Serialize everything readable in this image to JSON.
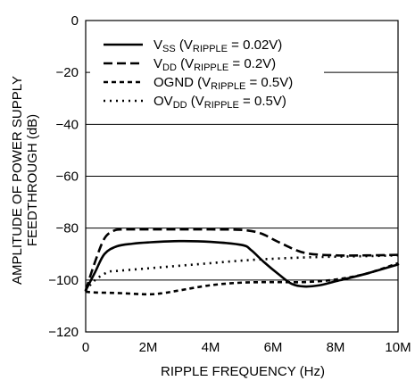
{
  "chart_data": {
    "type": "line",
    "title": "",
    "xlabel": "RIPPLE FREQUENCY (Hz)",
    "ylabel_lines": [
      "AMPLITUDE OF POWER SUPPLY",
      "FEEDTHROUGH (dB)"
    ],
    "xlim": [
      0,
      10000000
    ],
    "ylim": [
      -120,
      0
    ],
    "x_ticks": [
      0,
      2000000,
      4000000,
      6000000,
      8000000,
      10000000
    ],
    "x_tick_labels": [
      "0",
      "2M",
      "4M",
      "6M",
      "8M",
      "10M"
    ],
    "y_ticks": [
      0,
      -20,
      -40,
      -60,
      -80,
      -100,
      -120
    ],
    "y_tick_labels": [
      "0",
      "−20",
      "−40",
      "−60",
      "−80",
      "−100",
      "−120"
    ],
    "grid": "horizontal",
    "legend_position": "top-left",
    "series": [
      {
        "name": "VSS (VRIPPLE = 0.02V)",
        "legend": {
          "base": "V",
          "sub": "SS",
          "mid": " (V",
          "sub2": "RIPPLE",
          "tail": " = 0.02V)"
        },
        "style": "solid",
        "x": [
          0,
          300000,
          600000,
          1000000,
          1500000,
          2000000,
          3000000,
          4000000,
          5000000,
          5300000,
          5700000,
          6200000,
          6600000,
          7000000,
          7500000,
          8000000,
          9000000,
          10000000
        ],
        "y": [
          -104,
          -97,
          -90,
          -87,
          -86,
          -85.5,
          -85,
          -85.3,
          -86.5,
          -88.5,
          -93,
          -98,
          -101.5,
          -102.5,
          -102,
          -100.5,
          -97.5,
          -94
        ]
      },
      {
        "name": "VDD (VRIPPLE = 0.2V)",
        "legend": {
          "base": "V",
          "sub": "DD",
          "mid": " (V",
          "sub2": "RIPPLE",
          "tail": " = 0.2V)"
        },
        "style": "dashed",
        "x": [
          0,
          300000,
          600000,
          900000,
          1200000,
          2000000,
          3000000,
          4000000,
          5000000,
          5600000,
          6200000,
          7000000,
          8000000,
          9000000,
          10000000
        ],
        "y": [
          -104,
          -93,
          -84,
          -81,
          -80.5,
          -80.5,
          -80.5,
          -80.5,
          -80.7,
          -82,
          -85.5,
          -89.5,
          -90.5,
          -90.5,
          -90.3
        ]
      },
      {
        "name": "OGND (VRIPPLE = 0.5V)",
        "legend": {
          "base": "OGND",
          "sub": "",
          "mid": " (V",
          "sub2": "RIPPLE",
          "tail": " = 0.5V)"
        },
        "style": "short-dashed",
        "x": [
          0,
          300000,
          1000000,
          2000000,
          2500000,
          3000000,
          4000000,
          5000000,
          6000000,
          7000000,
          8000000,
          9000000,
          10000000
        ],
        "y": [
          -104.5,
          -104.8,
          -105,
          -105.5,
          -105,
          -104,
          -102,
          -101,
          -100.8,
          -100.8,
          -99.8,
          -97.5,
          -93.5
        ]
      },
      {
        "name": "OVDD (VRIPPLE = 0.5V)",
        "legend": {
          "base": "OV",
          "sub": "DD",
          "mid": " (V",
          "sub2": "RIPPLE",
          "tail": " = 0.5V)"
        },
        "style": "dotted",
        "x": [
          0,
          300000,
          700000,
          1000000,
          2000000,
          3000000,
          4000000,
          5000000,
          6000000,
          7000000,
          8000000,
          9000000,
          10000000
        ],
        "y": [
          -104,
          -100,
          -97,
          -96.5,
          -95.5,
          -94.5,
          -93.5,
          -92.5,
          -91.8,
          -91.3,
          -91,
          -90.8,
          -90.5
        ]
      }
    ]
  }
}
